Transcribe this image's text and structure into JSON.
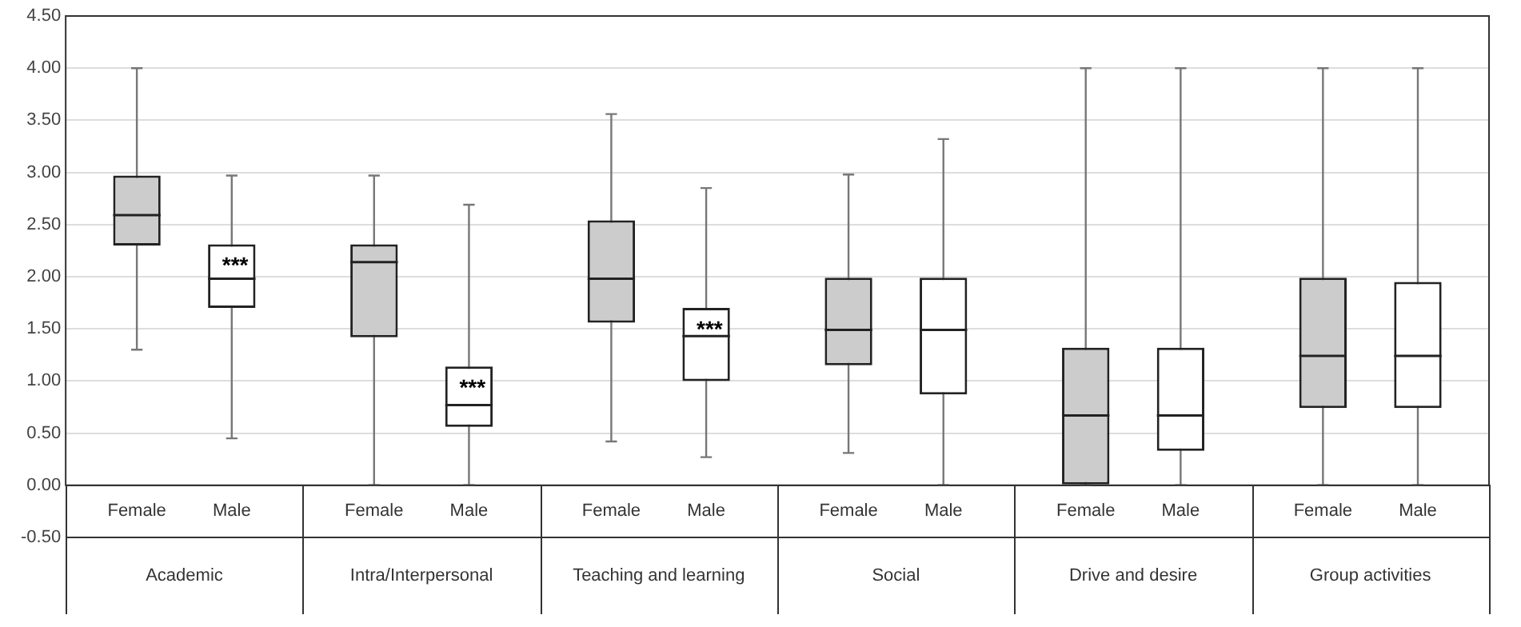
{
  "chart_data": {
    "type": "box",
    "categories": [
      "Academic",
      "Intra/Interpersonal",
      "Teaching and learning",
      "Social",
      "Drive and desire",
      "Group activities"
    ],
    "series": [
      {
        "name": "Female",
        "boxes": [
          {
            "low": 1.3,
            "q1": 2.3,
            "median": 2.59,
            "q3": 2.97,
            "high": 4.0
          },
          {
            "low": 0,
            "q1": 1.42,
            "median": 2.14,
            "q3": 2.31,
            "high": 2.97
          },
          {
            "low": 0.42,
            "q1": 1.56,
            "median": 1.98,
            "q3": 2.54,
            "high": 3.56
          },
          {
            "low": 0.31,
            "q1": 1.15,
            "median": 1.49,
            "q3": 1.99,
            "high": 2.98
          },
          {
            "low": 0,
            "q1": 0,
            "median": 0.67,
            "q3": 1.32,
            "high": 4.0
          },
          {
            "low": 0,
            "q1": 0.74,
            "median": 1.24,
            "q3": 1.99,
            "high": 4.0
          }
        ]
      },
      {
        "name": "Male",
        "boxes": [
          {
            "low": 0.45,
            "q1": 1.7,
            "median": 1.98,
            "q3": 2.31,
            "high": 2.97
          },
          {
            "low": 0,
            "q1": 0.56,
            "median": 0.77,
            "q3": 1.14,
            "high": 2.69
          },
          {
            "low": 0.27,
            "q1": 1.0,
            "median": 1.43,
            "q3": 1.7,
            "high": 2.85
          },
          {
            "low": 0,
            "q1": 0.87,
            "median": 1.49,
            "q3": 1.99,
            "high": 3.32
          },
          {
            "low": 0,
            "q1": 0.33,
            "median": 0.67,
            "q3": 1.32,
            "high": 4.0
          },
          {
            "low": 0,
            "q1": 0.74,
            "median": 1.24,
            "q3": 1.95,
            "high": 4.0
          }
        ]
      }
    ],
    "ylim": [
      -0.5,
      4.5
    ],
    "yticks": [
      {
        "value": -0.5,
        "label": "-0.50"
      },
      {
        "value": 0,
        "label": "0.00"
      },
      {
        "value": 0.5,
        "label": "0.50"
      },
      {
        "value": 1,
        "label": "1.00"
      },
      {
        "value": 1.5,
        "label": "1.50"
      },
      {
        "value": 2,
        "label": "2.00"
      },
      {
        "value": 2.5,
        "label": "2.50"
      },
      {
        "value": 3,
        "label": "3.00"
      },
      {
        "value": 3.5,
        "label": "3.50"
      },
      {
        "value": 4,
        "label": "4.00"
      },
      {
        "value": 4.5,
        "label": "4.50"
      }
    ],
    "grid": "y",
    "legend": false,
    "annotations": [
      "***",
      "***",
      "***"
    ]
  }
}
